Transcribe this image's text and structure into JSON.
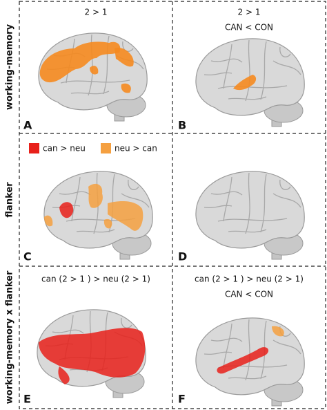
{
  "row_labels": [
    "working-memory",
    "flanker",
    "working-memory x flanker"
  ],
  "panels": [
    {
      "letter": "A",
      "title": [
        "2 > 1"
      ]
    },
    {
      "letter": "B",
      "title": [
        "2 > 1",
        "CAN < CON"
      ]
    },
    {
      "letter": "C"
    },
    {
      "letter": "D"
    },
    {
      "letter": "E",
      "title": [
        "can (2 > 1 ) > neu (2 > 1)"
      ]
    },
    {
      "letter": "F",
      "title": [
        "can (2 > 1 ) > neu (2 > 1)",
        "CAN < CON"
      ]
    }
  ],
  "legend": [
    {
      "label": "can > neu",
      "color": "#e8201a"
    },
    {
      "label": "neu > can",
      "color": "#f5a040"
    }
  ]
}
